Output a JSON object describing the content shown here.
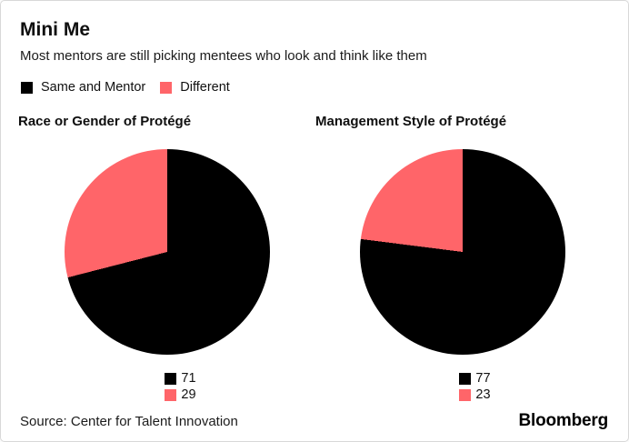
{
  "header": {
    "title": "Mini Me",
    "subtitle": "Most mentors are still picking mentees who look and think like them"
  },
  "legend": {
    "items": [
      {
        "label": "Same and Mentor",
        "color": "#000000"
      },
      {
        "label": "Different",
        "color": "#ff6569"
      }
    ]
  },
  "chart_data": [
    {
      "type": "pie",
      "title": "Race or Gender of Protégé",
      "labels": [
        "Same and Mentor",
        "Different"
      ],
      "values": [
        71,
        29
      ],
      "colors": [
        "#000000",
        "#ff6569"
      ],
      "start_angle_deg": 0,
      "direction": "clockwise",
      "legend_position": "below"
    },
    {
      "type": "pie",
      "title": "Management Style of Protégé",
      "labels": [
        "Same and Mentor",
        "Different"
      ],
      "values": [
        77,
        23
      ],
      "colors": [
        "#000000",
        "#ff6569"
      ],
      "start_angle_deg": 0,
      "direction": "clockwise",
      "legend_position": "below"
    }
  ],
  "footer": {
    "source": "Source: Center for Talent Innovation",
    "brand": "Bloomberg"
  }
}
